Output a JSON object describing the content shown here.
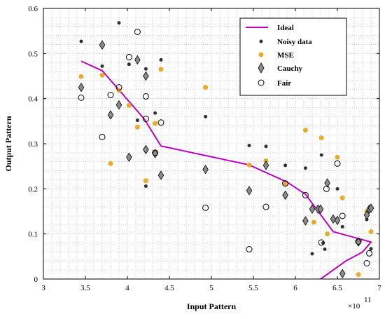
{
  "chart_data": {
    "type": "scatter",
    "xlabel": "Input Pattern",
    "ylabel": "Output Pattern",
    "x_exponent_label": "×10",
    "x_exponent_power": "11",
    "xlim": [
      3,
      7
    ],
    "ylim": [
      0,
      0.6
    ],
    "x_ticks": [
      3,
      3.5,
      4,
      4.5,
      5,
      5.5,
      6,
      6.5,
      7
    ],
    "x_tick_labels": [
      "3",
      "3.5",
      "4",
      "4.5",
      "5",
      "5.5",
      "6",
      "6.5",
      "7"
    ],
    "y_ticks": [
      0,
      0.1,
      0.2,
      0.3,
      0.4,
      0.5,
      0.6
    ],
    "y_tick_labels": [
      "0",
      "0.1",
      "0.2",
      "0.3",
      "0.4",
      "0.5",
      "0.6"
    ],
    "grid": "dotted",
    "legend_position": "top-right",
    "series": [
      {
        "name": "Ideal",
        "kind": "line",
        "color": "#c000c0",
        "x": [
          3.45,
          3.7,
          4.2,
          4.4,
          5.45,
          5.9,
          6.12,
          6.45,
          6.9,
          6.8,
          6.6,
          6.3
        ],
        "y": [
          0.483,
          0.462,
          0.355,
          0.295,
          0.253,
          0.215,
          0.188,
          0.105,
          0.082,
          0.06,
          0.04,
          0.0
        ]
      },
      {
        "name": "Noisy data",
        "kind": "dot",
        "color": "#333333",
        "x": [
          3.45,
          3.7,
          3.8,
          3.9,
          4.02,
          4.12,
          4.22,
          4.22,
          4.33,
          4.4,
          4.93,
          5.45,
          5.65,
          5.88,
          6.12,
          6.2,
          6.31,
          6.33,
          6.35,
          6.5,
          6.56,
          6.75,
          6.85,
          6.87,
          6.9
        ],
        "y": [
          0.527,
          0.472,
          0.36,
          0.568,
          0.476,
          0.352,
          0.466,
          0.206,
          0.368,
          0.486,
          0.36,
          0.296,
          0.294,
          0.252,
          0.246,
          0.056,
          0.275,
          0.08,
          0.066,
          0.2,
          0.116,
          0.085,
          0.132,
          0.15,
          0.067
        ]
      },
      {
        "name": "MSE",
        "kind": "dot",
        "color": "#e8ac2c",
        "x": [
          3.45,
          3.7,
          3.8,
          3.9,
          4.02,
          4.12,
          4.22,
          4.33,
          4.4,
          4.93,
          5.45,
          5.65,
          5.88,
          6.12,
          6.22,
          6.31,
          6.38,
          6.5,
          6.56,
          6.75,
          6.85,
          6.9
        ],
        "y": [
          0.449,
          0.452,
          0.256,
          0.418,
          0.385,
          0.337,
          0.218,
          0.345,
          0.465,
          0.425,
          0.253,
          0.262,
          0.21,
          0.33,
          0.126,
          0.313,
          0.1,
          0.27,
          0.18,
          0.01,
          0.15,
          0.105
        ]
      },
      {
        "name": "Cauchy",
        "kind": "diamond",
        "color": "#8c8c8c",
        "x": [
          3.45,
          3.7,
          3.8,
          3.9,
          4.02,
          4.12,
          4.22,
          4.22,
          4.33,
          4.4,
          4.93,
          5.45,
          5.65,
          5.88,
          6.12,
          6.2,
          6.27,
          6.3,
          6.38,
          6.45,
          6.5,
          6.56,
          6.75,
          6.85,
          6.88,
          6.9
        ],
        "y": [
          0.425,
          0.519,
          0.364,
          0.386,
          0.27,
          0.486,
          0.45,
          0.287,
          0.278,
          0.23,
          0.243,
          0.196,
          0.252,
          0.186,
          0.129,
          0.155,
          0.155,
          0.155,
          0.213,
          0.133,
          0.13,
          0.012,
          0.082,
          0.142,
          0.155,
          0.157
        ]
      },
      {
        "name": "Fair",
        "kind": "ring",
        "color": "#000000",
        "x": [
          3.45,
          3.7,
          3.8,
          3.9,
          4.02,
          4.12,
          4.22,
          4.22,
          4.33,
          4.4,
          4.93,
          5.45,
          5.65,
          5.88,
          6.12,
          6.31,
          6.37,
          6.5,
          6.56,
          6.75,
          6.85,
          6.88
        ],
        "y": [
          0.402,
          0.315,
          0.408,
          0.425,
          0.492,
          0.548,
          0.405,
          0.355,
          0.28,
          0.347,
          0.158,
          0.066,
          0.16,
          0.212,
          0.186,
          0.081,
          0.2,
          0.256,
          0.14,
          0.083,
          0.035,
          0.057
        ]
      }
    ]
  }
}
